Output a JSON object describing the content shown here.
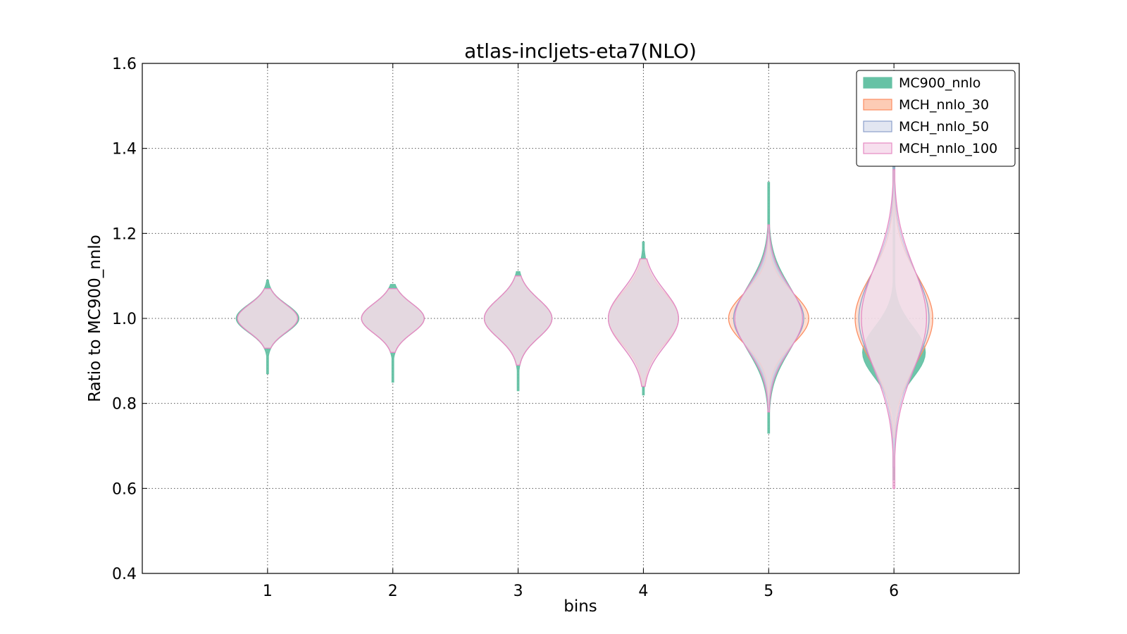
{
  "chart_data": {
    "type": "violin",
    "title": "atlas-incljets-eta7(NLO)",
    "xlabel": "bins",
    "ylabel": "Ratio to MC900_nnlo",
    "xlim": [
      0,
      7
    ],
    "ylim": [
      0.4,
      1.6
    ],
    "xticks": [
      1,
      2,
      3,
      4,
      5,
      6
    ],
    "yticks": [
      0.4,
      0.6,
      0.8,
      1.0,
      1.2,
      1.4,
      1.6
    ],
    "grid": true,
    "legend_position": "top-right",
    "categories": [
      1,
      2,
      3,
      4,
      5,
      6
    ],
    "series": [
      {
        "name": "MC900_nnlo",
        "color": "#66c2a5",
        "fill": "#66c2a5",
        "violins": [
          {
            "bin": 1,
            "center": 1.0,
            "min": 0.87,
            "max": 1.09,
            "halfwidth": 0.25,
            "spread": 0.033
          },
          {
            "bin": 2,
            "center": 1.0,
            "min": 0.85,
            "max": 1.08,
            "halfwidth": 0.25,
            "spread": 0.035
          },
          {
            "bin": 3,
            "center": 1.0,
            "min": 0.83,
            "max": 1.11,
            "halfwidth": 0.27,
            "spread": 0.045
          },
          {
            "bin": 4,
            "center": 1.0,
            "min": 0.82,
            "max": 1.18,
            "halfwidth": 0.27,
            "spread": 0.06
          },
          {
            "bin": 5,
            "center": 1.0,
            "min": 0.73,
            "max": 1.32,
            "halfwidth": 0.26,
            "spread": 0.08
          },
          {
            "bin": 6,
            "center": 0.92,
            "min": 0.62,
            "max": 1.55,
            "halfwidth": 0.25,
            "spread": 0.06
          }
        ]
      },
      {
        "name": "MCH_nnlo_30",
        "color": "#fc8d62",
        "fill": "#fdc6ad",
        "violins": [
          {
            "bin": 1,
            "center": 1.0,
            "min": 0.93,
            "max": 1.07,
            "halfwidth": 0.24,
            "spread": 0.033
          },
          {
            "bin": 2,
            "center": 1.0,
            "min": 0.92,
            "max": 1.07,
            "halfwidth": 0.25,
            "spread": 0.035
          },
          {
            "bin": 3,
            "center": 1.0,
            "min": 0.89,
            "max": 1.1,
            "halfwidth": 0.27,
            "spread": 0.045
          },
          {
            "bin": 4,
            "center": 1.0,
            "min": 0.84,
            "max": 1.14,
            "halfwidth": 0.28,
            "spread": 0.06
          },
          {
            "bin": 5,
            "center": 1.0,
            "min": 0.8,
            "max": 1.2,
            "halfwidth": 0.32,
            "spread": 0.06
          },
          {
            "bin": 6,
            "center": 1.0,
            "min": 0.72,
            "max": 1.3,
            "halfwidth": 0.31,
            "spread": 0.1
          }
        ]
      },
      {
        "name": "MCH_nnlo_50",
        "color": "#8da0cb",
        "fill": "#dfe3f0",
        "violins": [
          {
            "bin": 1,
            "center": 1.0,
            "min": 0.93,
            "max": 1.07,
            "halfwidth": 0.24,
            "spread": 0.033
          },
          {
            "bin": 2,
            "center": 1.0,
            "min": 0.92,
            "max": 1.07,
            "halfwidth": 0.25,
            "spread": 0.035
          },
          {
            "bin": 3,
            "center": 1.0,
            "min": 0.89,
            "max": 1.1,
            "halfwidth": 0.27,
            "spread": 0.045
          },
          {
            "bin": 4,
            "center": 1.0,
            "min": 0.84,
            "max": 1.14,
            "halfwidth": 0.28,
            "spread": 0.065
          },
          {
            "bin": 5,
            "center": 1.0,
            "min": 0.79,
            "max": 1.2,
            "halfwidth": 0.28,
            "spread": 0.07
          },
          {
            "bin": 6,
            "center": 1.0,
            "min": 0.65,
            "max": 1.4,
            "halfwidth": 0.28,
            "spread": 0.11
          }
        ]
      },
      {
        "name": "MCH_nnlo_100",
        "color": "#e78ac3",
        "fill": "#f6dbec",
        "violins": [
          {
            "bin": 1,
            "center": 1.0,
            "min": 0.93,
            "max": 1.07,
            "halfwidth": 0.24,
            "spread": 0.033
          },
          {
            "bin": 2,
            "center": 1.0,
            "min": 0.92,
            "max": 1.07,
            "halfwidth": 0.25,
            "spread": 0.035
          },
          {
            "bin": 3,
            "center": 1.0,
            "min": 0.89,
            "max": 1.1,
            "halfwidth": 0.27,
            "spread": 0.045
          },
          {
            "bin": 4,
            "center": 1.0,
            "min": 0.84,
            "max": 1.14,
            "halfwidth": 0.28,
            "spread": 0.065
          },
          {
            "bin": 5,
            "center": 1.0,
            "min": 0.78,
            "max": 1.22,
            "halfwidth": 0.27,
            "spread": 0.075
          },
          {
            "bin": 6,
            "center": 1.0,
            "min": 0.6,
            "max": 1.35,
            "halfwidth": 0.26,
            "spread": 0.12
          }
        ]
      }
    ]
  }
}
